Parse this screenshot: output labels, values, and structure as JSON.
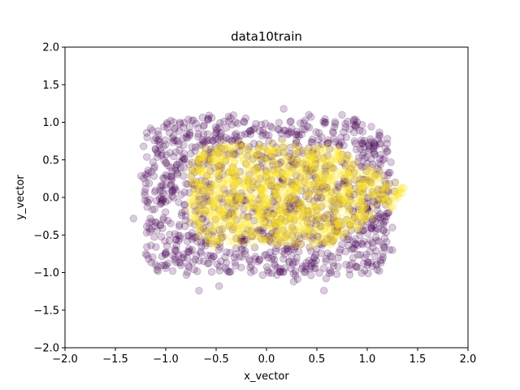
{
  "chart_data": {
    "type": "scatter",
    "title": "data10train",
    "xlabel": "x_vector",
    "ylabel": "y_vector",
    "xlim": [
      -2.0,
      2.0
    ],
    "ylim": [
      -2.0,
      2.0
    ],
    "xticks": [
      -2.0,
      -1.5,
      -1.0,
      -0.5,
      0.0,
      0.5,
      1.0,
      1.5,
      2.0
    ],
    "yticks": [
      -2.0,
      -1.5,
      -1.0,
      -0.5,
      0.0,
      0.5,
      1.0,
      1.5,
      2.0
    ],
    "xtick_labels": [
      "−2.0",
      "−1.5",
      "−1.0",
      "−0.5",
      "0.0",
      "0.5",
      "1.0",
      "1.5",
      "2.0"
    ],
    "ytick_labels": [
      "−2.0",
      "−1.5",
      "−1.0",
      "−0.5",
      "0.0",
      "0.5",
      "1.0",
      "1.5",
      "2.0"
    ],
    "grid": false,
    "legend": "none",
    "series": [
      {
        "color": "#440154",
        "alpha": 0.2,
        "region": {
          "x": [
            -1.2,
            1.25
          ],
          "y": [
            -1.05,
            1.1
          ]
        },
        "outlier_points": [
          [
            -1.32,
            -0.28
          ],
          [
            -1.22,
            0.68
          ],
          [
            -1.15,
            0.92
          ],
          [
            -0.95,
            1.02
          ],
          [
            -0.67,
            -1.24
          ],
          [
            -0.47,
            -1.18
          ],
          [
            -0.22,
            1.0
          ],
          [
            0.17,
            1.18
          ],
          [
            0.27,
            -1.12
          ],
          [
            0.57,
            -1.24
          ],
          [
            0.75,
            1.1
          ],
          [
            1.2,
            0.78
          ],
          [
            1.12,
            -0.98
          ],
          [
            1.25,
            -0.7
          ],
          [
            -1.17,
            -0.82
          ],
          [
            0.42,
            1.1
          ]
        ]
      },
      {
        "color": "#fde725",
        "alpha": 0.2,
        "region": {
          "x": [
            -0.75,
            1.35
          ],
          "y": [
            -0.65,
            0.75
          ]
        }
      }
    ]
  }
}
